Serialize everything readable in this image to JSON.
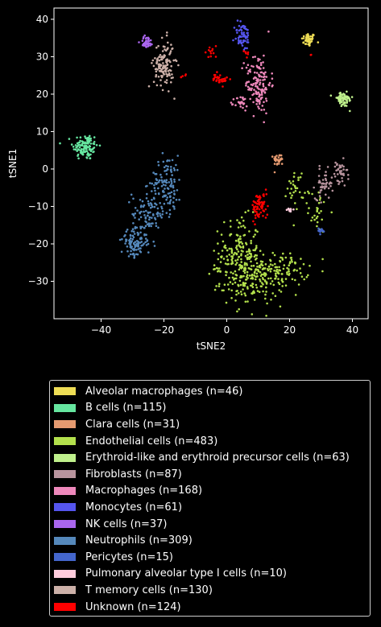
{
  "chart_data": {
    "type": "scatter",
    "xlabel": "tSNE2",
    "ylabel": "tSNE1",
    "xlim": [
      -55,
      45
    ],
    "ylim": [
      -40,
      43
    ],
    "xticks": [
      -40,
      -20,
      0,
      20,
      40
    ],
    "yticks": [
      -30,
      -20,
      -10,
      0,
      10,
      20,
      30,
      40
    ],
    "grid": false,
    "legend_position": "bottom",
    "series": [
      {
        "name": "Alveolar macrophages (n=46)",
        "color": "#eedd55",
        "n": 46,
        "clusters": [
          {
            "cx": 26,
            "cy": 34.5,
            "sx": 1.1,
            "sy": 0.9
          }
        ]
      },
      {
        "name": "B cells (n=115)",
        "color": "#66e6a0",
        "n": 115,
        "clusters": [
          {
            "cx": -45,
            "cy": 6,
            "sx": 2.0,
            "sy": 1.8
          }
        ]
      },
      {
        "name": "Clara cells (n=31)",
        "color": "#e59a70",
        "n": 31,
        "clusters": [
          {
            "cx": 16.5,
            "cy": 2.5,
            "sx": 0.8,
            "sy": 0.8
          }
        ]
      },
      {
        "name": "Endothelial cells (n=483)",
        "color": "#b3e04c",
        "n": 483,
        "clusters": [
          {
            "cx": 4,
            "cy": -22,
            "sx": 3.2,
            "sy": 4.5,
            "w": 0.32
          },
          {
            "cx": 8,
            "cy": -30,
            "sx": 5.0,
            "sy": 3.2,
            "w": 0.34
          },
          {
            "cx": 17,
            "cy": -27,
            "sx": 4.5,
            "sy": 2.2,
            "w": 0.2
          },
          {
            "cx": 22,
            "cy": -5,
            "sx": 1.3,
            "sy": 2.6,
            "w": 0.06
          },
          {
            "cx": 29,
            "cy": -11,
            "sx": 1.5,
            "sy": 3.0,
            "w": 0.06
          },
          {
            "cx": -4,
            "cy": -27.5,
            "sx": 0.8,
            "sy": 0.6,
            "w": 0.02
          }
        ]
      },
      {
        "name": "Erythroid-like and erythroid precursor cells (n=63)",
        "color": "#bff08c",
        "n": 63,
        "clusters": [
          {
            "cx": 37,
            "cy": 18.5,
            "sx": 1.6,
            "sy": 1.0
          }
        ]
      },
      {
        "name": "Fibroblasts (n=87)",
        "color": "#b8949e",
        "n": 87,
        "clusters": [
          {
            "cx": 31,
            "cy": -4,
            "sx": 1.4,
            "sy": 2.0,
            "w": 0.55
          },
          {
            "cx": 36,
            "cy": -1.5,
            "sx": 1.2,
            "sy": 1.8,
            "w": 0.45
          }
        ]
      },
      {
        "name": "Macrophages (n=168)",
        "color": "#ee88bb",
        "n": 168,
        "clusters": [
          {
            "cx": 10,
            "cy": 23,
            "sx": 2.0,
            "sy": 4.0,
            "w": 0.85
          },
          {
            "cx": 4.5,
            "cy": 17.5,
            "sx": 1.0,
            "sy": 1.0,
            "w": 0.15
          }
        ]
      },
      {
        "name": "Monocytes (n=61)",
        "color": "#5555ee",
        "n": 61,
        "clusters": [
          {
            "cx": 5,
            "cy": 35.5,
            "sx": 1.3,
            "sy": 2.0
          }
        ]
      },
      {
        "name": "NK cells (n=37)",
        "color": "#aa66ee",
        "n": 37,
        "clusters": [
          {
            "cx": -25.5,
            "cy": 34,
            "sx": 1.0,
            "sy": 0.8
          }
        ]
      },
      {
        "name": "Neutrophils (n=309)",
        "color": "#5588bb",
        "n": 309,
        "clusters": [
          {
            "cx": -19,
            "cy": -4,
            "sx": 2.4,
            "sy": 3.8,
            "w": 0.38
          },
          {
            "cx": -25,
            "cy": -12,
            "sx": 2.6,
            "sy": 3.2,
            "w": 0.32
          },
          {
            "cx": -29.5,
            "cy": -20,
            "sx": 2.0,
            "sy": 1.8,
            "w": 0.3
          }
        ]
      },
      {
        "name": "Pericytes (n=15)",
        "color": "#4466cc",
        "n": 15,
        "clusters": [
          {
            "cx": 30,
            "cy": -16.5,
            "sx": 0.6,
            "sy": 0.4
          }
        ]
      },
      {
        "name": "Pulmonary alveolar type I cells (n=10)",
        "color": "#ffccdd",
        "n": 10,
        "clusters": [
          {
            "cx": 20,
            "cy": -11,
            "sx": 0.7,
            "sy": 0.3
          }
        ]
      },
      {
        "name": "T memory cells (n=130)",
        "color": "#ccb0a8",
        "n": 130,
        "clusters": [
          {
            "cx": -20,
            "cy": 28,
            "sx": 1.6,
            "sy": 3.2
          }
        ]
      },
      {
        "name": "Unknown (n=124)",
        "color": "#ff0000",
        "n": 124,
        "clusters": [
          {
            "cx": 10.5,
            "cy": -10,
            "sx": 1.3,
            "sy": 1.8,
            "w": 0.55
          },
          {
            "cx": -2,
            "cy": 24,
            "sx": 1.2,
            "sy": 0.8,
            "w": 0.25
          },
          {
            "cx": -5,
            "cy": 31.5,
            "sx": 1.2,
            "sy": 0.8,
            "w": 0.1
          },
          {
            "cx": 6,
            "cy": 30.5,
            "sx": 0.6,
            "sy": 0.6,
            "w": 0.05
          },
          {
            "cx": 26.5,
            "cy": 30.5,
            "sx": 0.3,
            "sy": 0.3,
            "w": 0.02
          },
          {
            "cx": -14,
            "cy": 25,
            "sx": 0.5,
            "sy": 0.3,
            "w": 0.03
          }
        ]
      }
    ]
  }
}
